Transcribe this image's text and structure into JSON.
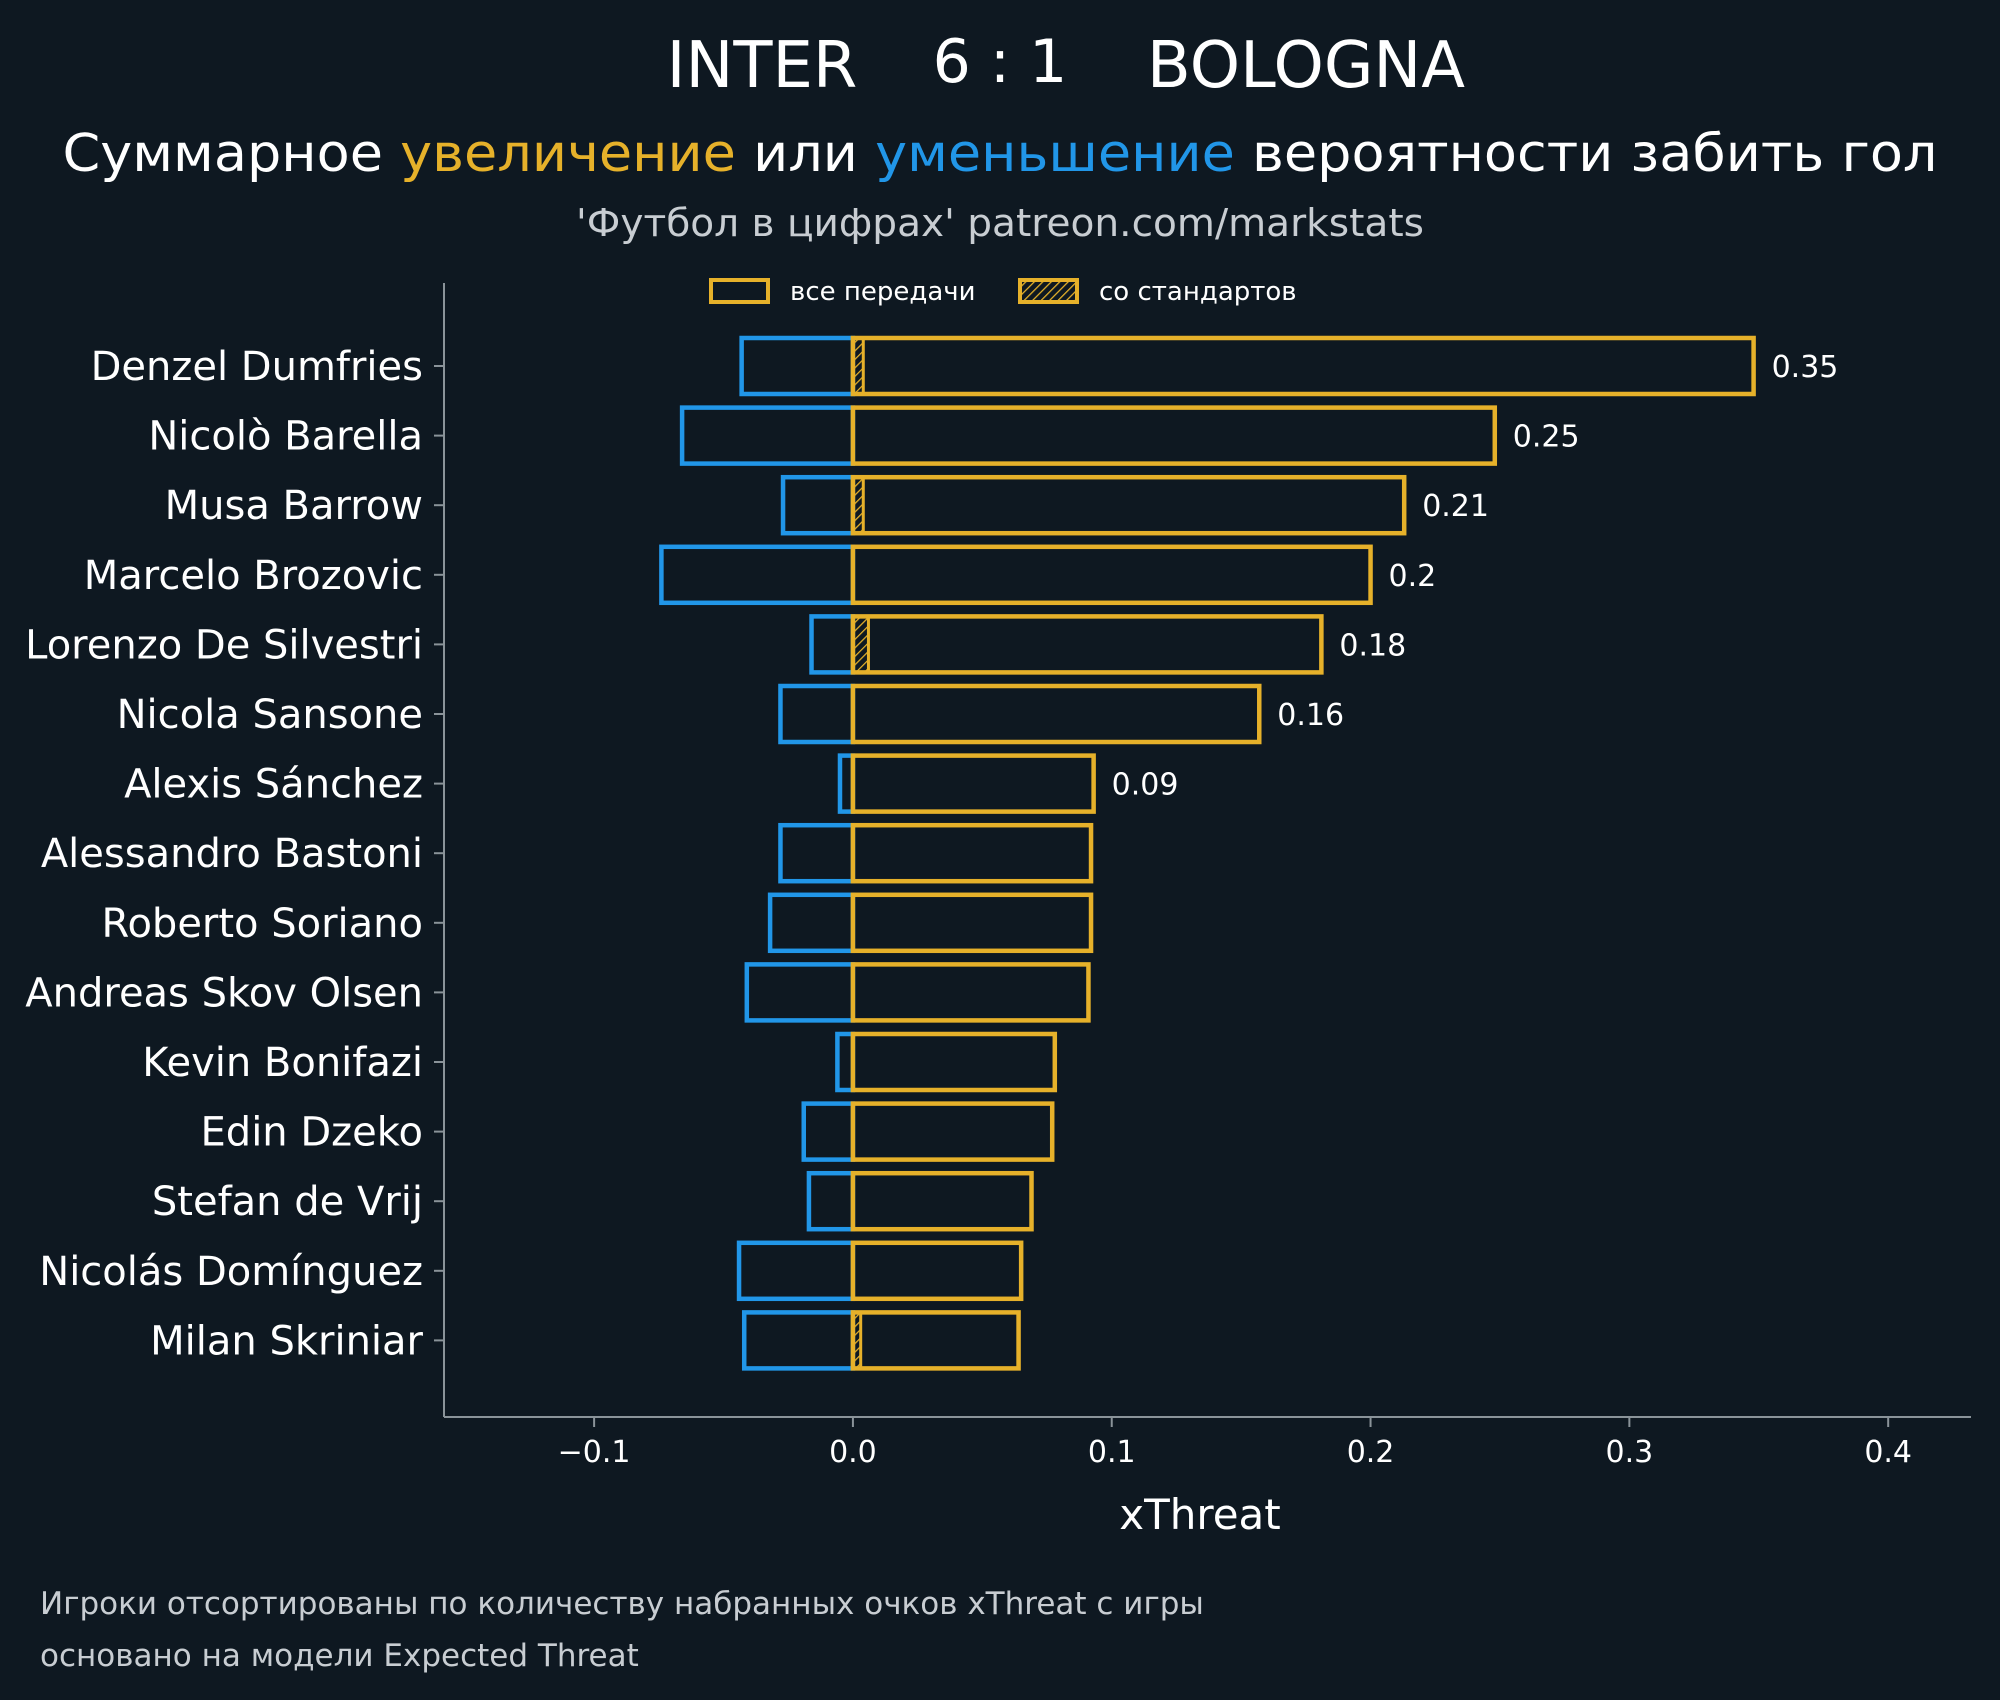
{
  "header": {
    "home_team": "INTER",
    "score": "6 : 1",
    "away_team": "BOLOGNA",
    "subtitle_part1": "Суммарное ",
    "subtitle_increase": "увеличение",
    "subtitle_part2": " или ",
    "subtitle_decrease": "уменьшение",
    "subtitle_part3": " вероятности забить гол",
    "credit": "'Футбол в цифрах' patreon.com/markstats"
  },
  "legend": {
    "all_passes": "все передачи",
    "set_pieces": "со стандартов"
  },
  "footer": {
    "line1": "Игроки отсортированы по количеству набранных очков xThreat с игры",
    "line2": "основано на модели Expected Threat"
  },
  "colors": {
    "background": "#0e1821",
    "increase": "#e6b12a",
    "decrease": "#2196e8",
    "text": "#ffffff",
    "muted": "#c8cdd2",
    "axis": "#8a9399"
  },
  "chart_data": {
    "type": "bar",
    "orientation": "horizontal",
    "xlabel": "xThreat",
    "xlim": [
      -0.158,
      0.432
    ],
    "xticks": [
      -0.1,
      0.0,
      0.1,
      0.2,
      0.3,
      0.4
    ],
    "xtick_labels": [
      "−0.1",
      "0.0",
      "0.1",
      "0.2",
      "0.3",
      "0.4"
    ],
    "categories": [
      "Denzel Dumfries",
      "Nicolò Barella",
      "Musa Barrow",
      "Marcelo Brozovic",
      "Lorenzo De Silvestri",
      "Nicola Sansone",
      "Alexis Sánchez",
      "Alessandro Bastoni",
      "Roberto Soriano",
      "Andreas Skov Olsen",
      "Kevin Bonifazi",
      "Edin Dzeko",
      "Stefan de Vrij",
      "Nicolás Domínguez",
      "Milan Skriniar"
    ],
    "series": [
      {
        "name": "увеличение (все передачи)",
        "values": [
          0.348,
          0.248,
          0.213,
          0.2,
          0.181,
          0.157,
          0.093,
          0.092,
          0.092,
          0.091,
          0.078,
          0.077,
          0.069,
          0.065,
          0.064
        ]
      },
      {
        "name": "уменьшение (все передачи)",
        "values": [
          -0.043,
          -0.066,
          -0.027,
          -0.074,
          -0.016,
          -0.028,
          -0.005,
          -0.028,
          -0.032,
          -0.041,
          -0.006,
          -0.019,
          -0.017,
          -0.044,
          -0.042
        ]
      },
      {
        "name": "со стандартов",
        "values": [
          0.004,
          0,
          0.004,
          0,
          0.006,
          0,
          0,
          0,
          0,
          0,
          0,
          0,
          0,
          0,
          0.003
        ]
      }
    ],
    "value_labels": [
      "0.35",
      "0.25",
      "0.21",
      "0.2",
      "0.18",
      "0.16",
      "0.09",
      "",
      "",
      "",
      "",
      "",
      "",
      "",
      ""
    ]
  }
}
